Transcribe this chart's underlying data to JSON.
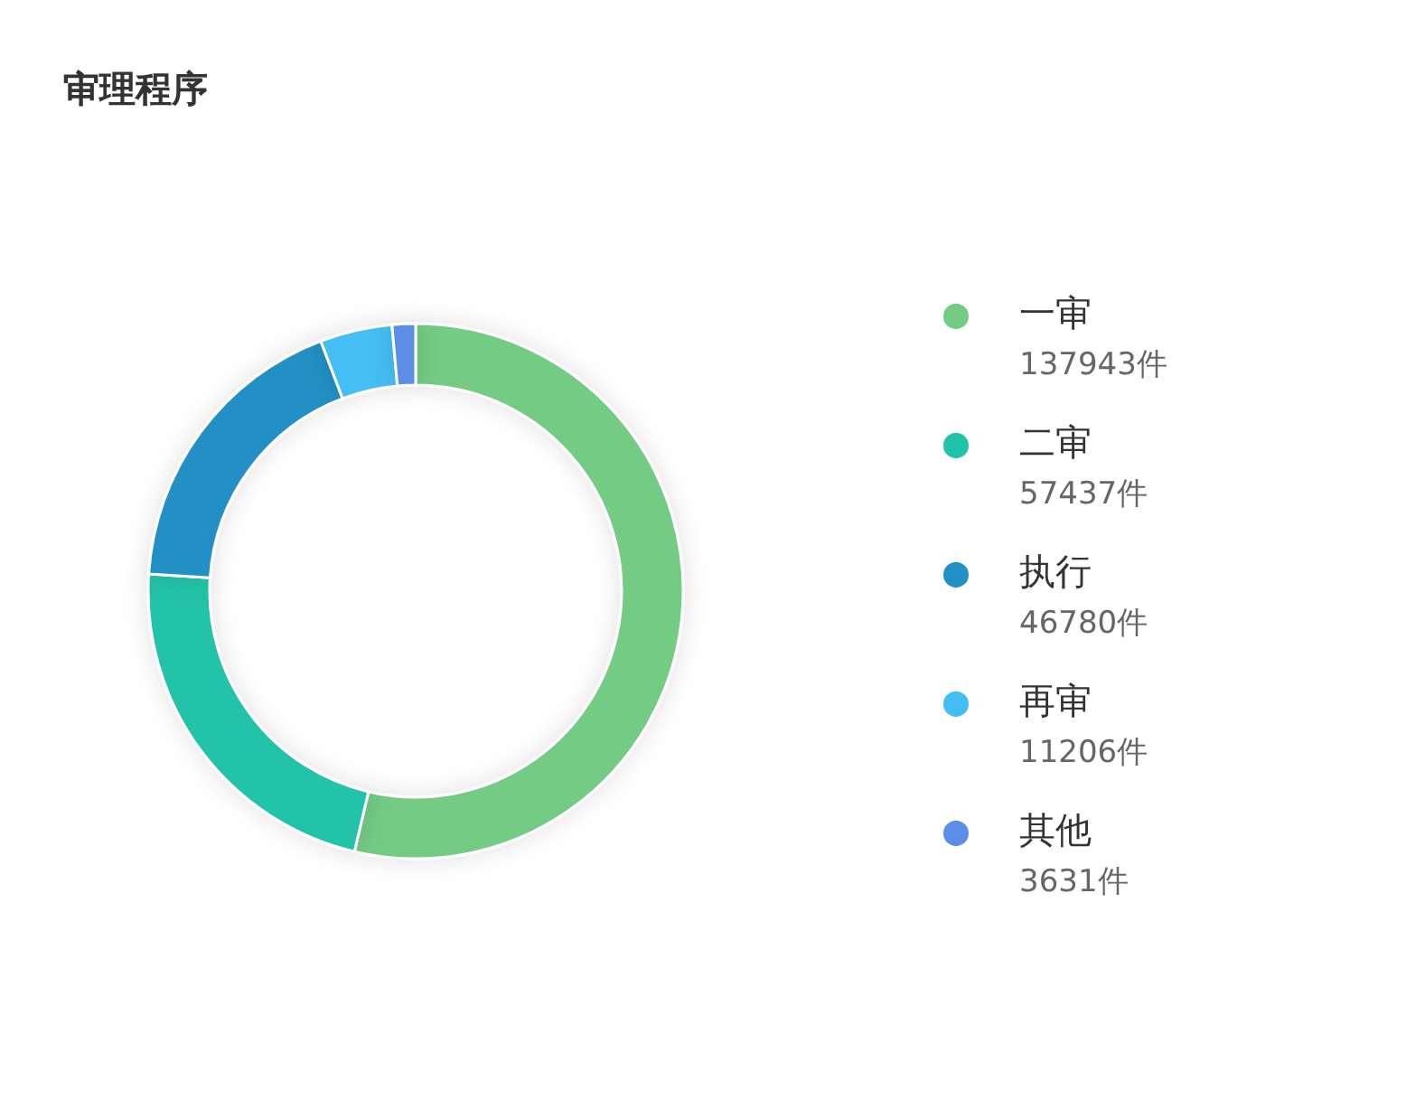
{
  "chart_data": {
    "type": "donut",
    "title": "审理程序",
    "categories": [
      "一审",
      "二审",
      "执行",
      "再审",
      "其他"
    ],
    "values": [
      137943,
      57437,
      46780,
      11206,
      3631
    ],
    "value_labels": [
      "137943件",
      "57437件",
      "46780件",
      "11206件",
      "3631件"
    ],
    "colors": [
      "#73cb84",
      "#20c3a8",
      "#2290c4",
      "#44bdf5",
      "#5b8ee6"
    ],
    "legend": "right"
  }
}
